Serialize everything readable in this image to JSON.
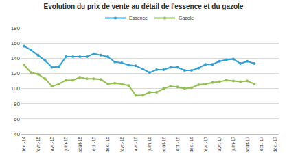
{
  "chart_data": {
    "type": "line",
    "title": "Evolution du prix de vente au détail de l'essence et du gazole",
    "categories": [
      "déc.-14",
      null,
      "févr.-15",
      null,
      "avr.-15",
      null,
      "juin-15",
      null,
      "août-15",
      null,
      "oct.-15",
      null,
      "déc.-15",
      null,
      "févr.-16",
      null,
      "avr.-16",
      null,
      "juin-16",
      null,
      "août-16",
      null,
      "oct.-16",
      null,
      "déc.-16",
      null,
      "févr.-17",
      null,
      "avr.-17",
      null,
      "juin-17",
      null,
      "août-17",
      null,
      "oct.-17",
      null,
      "déc.-17"
    ],
    "series": [
      {
        "name": "Essence",
        "color": "#2ea0d8",
        "marker": "circle",
        "line_style": "solid",
        "values": [
          156,
          151,
          144,
          137,
          128,
          129,
          142,
          142,
          142,
          142,
          146,
          144,
          142,
          135,
          134,
          131,
          130,
          126,
          121,
          125,
          125,
          128,
          128,
          124,
          124,
          127,
          132,
          132,
          136,
          138,
          139,
          133,
          136,
          133,
          null,
          null,
          null
        ]
      },
      {
        "name": "Gazole",
        "color": "#92c050",
        "marker": "circle",
        "line_style": "solid",
        "values": [
          131,
          121,
          119,
          113,
          103,
          106,
          111,
          111,
          115,
          113,
          113,
          112,
          106,
          107,
          106,
          104,
          91,
          91,
          95,
          95,
          100,
          103,
          102,
          100,
          101,
          105,
          106,
          108,
          109,
          111,
          110,
          109,
          110,
          106,
          null,
          null,
          null
        ]
      }
    ],
    "ylim": [
      40,
      180
    ],
    "yticks": [
      40,
      60,
      80,
      100,
      120,
      140,
      160,
      180
    ],
    "grid": true,
    "legend": "top"
  }
}
